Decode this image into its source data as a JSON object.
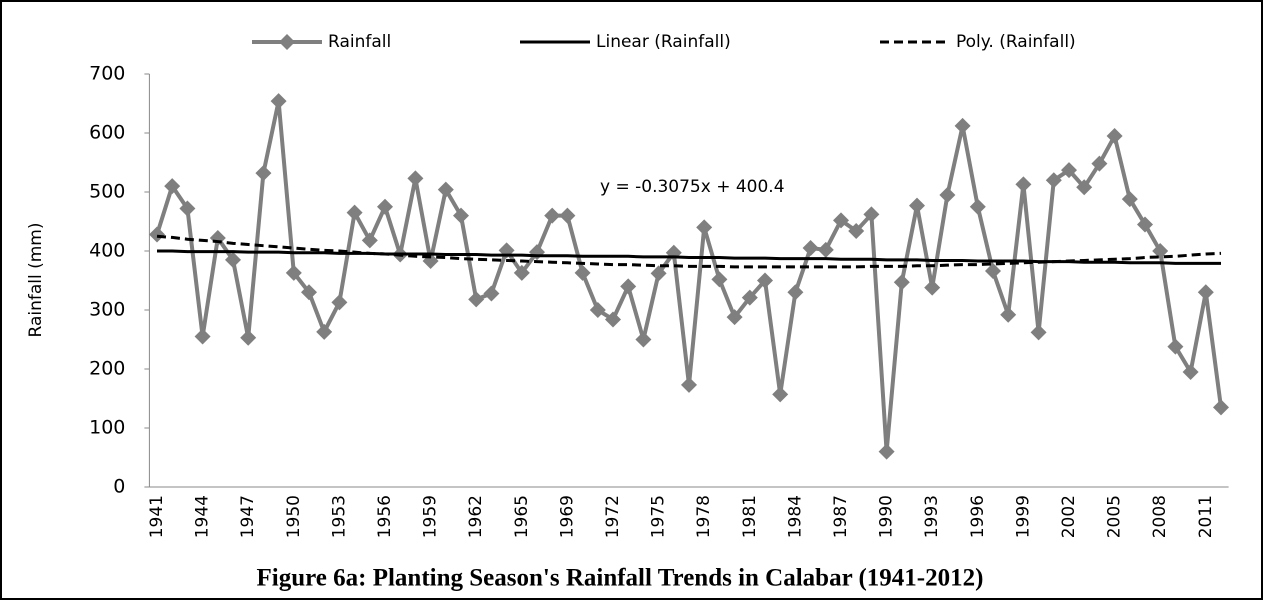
{
  "chart_data": {
    "type": "line",
    "y_label": "Rainfall (mm)",
    "caption": "Figure 6a: Planting Season's Rainfall Trends in Calabar (1941-2012)",
    "annotation": "y = -0.3075x + 400.4",
    "categories": [
      "1941",
      null,
      null,
      "1944",
      null,
      null,
      "1947",
      null,
      null,
      "1950",
      null,
      null,
      "1953",
      null,
      null,
      "1956",
      null,
      null,
      "1959",
      null,
      null,
      "1962",
      null,
      null,
      "1965",
      null,
      null,
      "1969",
      null,
      null,
      "1972",
      null,
      null,
      "1975",
      null,
      null,
      "1978",
      null,
      null,
      "1981",
      null,
      null,
      "1984",
      null,
      null,
      "1987",
      null,
      null,
      "1990",
      null,
      null,
      "1993",
      null,
      null,
      "1996",
      null,
      null,
      "1999",
      null,
      null,
      "2002",
      null,
      null,
      "2005",
      null,
      null,
      "2008",
      null,
      null,
      "2011",
      null
    ],
    "series": [
      {
        "name": "Rainfall",
        "color": "#7f7f7f",
        "style": "markers",
        "values": [
          428,
          510,
          472,
          255,
          422,
          385,
          253,
          532,
          654,
          363,
          330,
          263,
          313,
          465,
          418,
          475,
          394,
          523,
          383,
          504,
          460,
          318,
          328,
          401,
          363,
          398,
          460,
          460,
          363,
          300,
          284,
          340,
          250,
          362,
          397,
          173,
          440,
          352,
          288,
          321,
          350,
          157,
          330,
          405,
          402,
          452,
          434,
          462,
          60,
          347,
          477,
          338,
          495,
          612,
          475,
          366,
          292,
          513,
          262,
          520,
          537,
          508,
          548,
          595,
          488,
          445,
          400,
          238,
          195,
          330,
          135
        ]
      },
      {
        "name": "Linear (Rainfall)",
        "color": "#000000",
        "style": "solid",
        "values": [
          400,
          400,
          399,
          399,
          399,
          399,
          398,
          398,
          398,
          397,
          397,
          397,
          396,
          396,
          396,
          395,
          395,
          395,
          395,
          394,
          394,
          394,
          393,
          393,
          393,
          392,
          392,
          392,
          391,
          391,
          391,
          391,
          390,
          390,
          390,
          389,
          389,
          389,
          388,
          388,
          388,
          387,
          387,
          387,
          387,
          386,
          386,
          386,
          385,
          385,
          385,
          384,
          384,
          384,
          383,
          383,
          383,
          383,
          382,
          382,
          382,
          381,
          381,
          381,
          380,
          380,
          380,
          379,
          379,
          379,
          379
        ]
      },
      {
        "name": "Poly. (Rainfall)",
        "color": "#000000",
        "style": "dashed",
        "values": [
          425,
          423,
          420,
          418,
          416,
          413,
          411,
          409,
          407,
          405,
          403,
          401,
          400,
          398,
          396,
          395,
          393,
          391,
          390,
          389,
          387,
          386,
          385,
          384,
          383,
          382,
          381,
          380,
          379,
          378,
          377,
          377,
          376,
          375,
          375,
          374,
          374,
          374,
          373,
          373,
          373,
          373,
          373,
          373,
          373,
          373,
          373,
          374,
          374,
          374,
          375,
          375,
          376,
          377,
          377,
          378,
          379,
          380,
          381,
          382,
          383,
          384,
          385,
          386,
          387,
          389,
          390,
          391,
          393,
          395,
          396
        ]
      }
    ],
    "ylim": [
      0,
      700
    ],
    "yticks": [
      0,
      100,
      200,
      300,
      400,
      500,
      600,
      700
    ],
    "grid": false,
    "legend": "top"
  }
}
